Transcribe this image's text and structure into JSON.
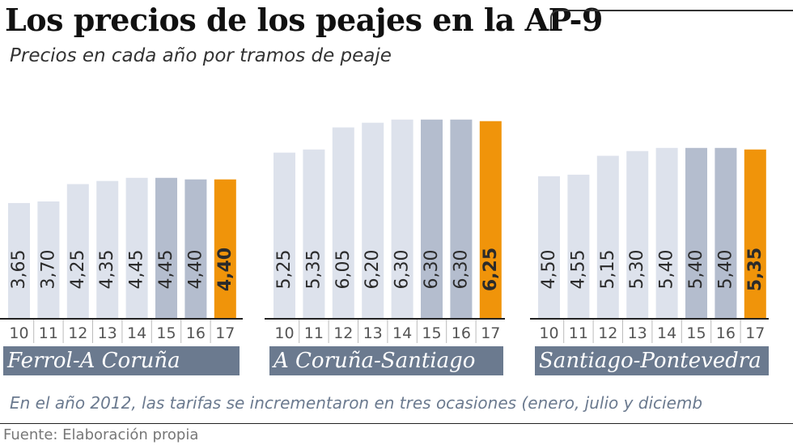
{
  "title": "Los precios de los peajes en la AP-9",
  "subtitle": "Precios en cada año por tramos de peaje",
  "note": "En el año 2012, las tarifas se incrementaron en tres ocasiones (enero, julio y diciemb",
  "source": "Fuente: Elaboración propia",
  "colors": {
    "bar_light": "#dde2ec",
    "bar_mid": "#b4bdce",
    "bar_highlight": "#f0940a",
    "label_bg": "#6b7a8f",
    "note_text": "#6b7a8f"
  },
  "chart_data": {
    "type": "bar",
    "categories": [
      "10",
      "11",
      "12",
      "13",
      "14",
      "15",
      "16",
      "17"
    ],
    "ylim": [
      0,
      6.5
    ],
    "grid": false,
    "groups": [
      {
        "name": "Ferrol-A Coruña",
        "values": [
          3.65,
          3.7,
          4.25,
          4.35,
          4.45,
          4.45,
          4.4,
          4.4
        ],
        "labels": [
          "3,65",
          "3,70",
          "4,25",
          "4,35",
          "4,45",
          "4,45",
          "4,40",
          "4,40"
        ]
      },
      {
        "name": "A Coruña-Santiago",
        "values": [
          5.25,
          5.35,
          6.05,
          6.2,
          6.3,
          6.3,
          6.3,
          6.25
        ],
        "labels": [
          "5,25",
          "5,35",
          "6,05",
          "6,20",
          "6,30",
          "6,30",
          "6,30",
          "6,25"
        ]
      },
      {
        "name": "Santiago-Pontevedra",
        "values": [
          4.5,
          4.55,
          5.15,
          5.3,
          5.4,
          5.4,
          5.4,
          5.35
        ],
        "labels": [
          "4,50",
          "4,55",
          "5,15",
          "5,30",
          "5,40",
          "5,40",
          "5,40",
          "5,35"
        ]
      }
    ]
  }
}
